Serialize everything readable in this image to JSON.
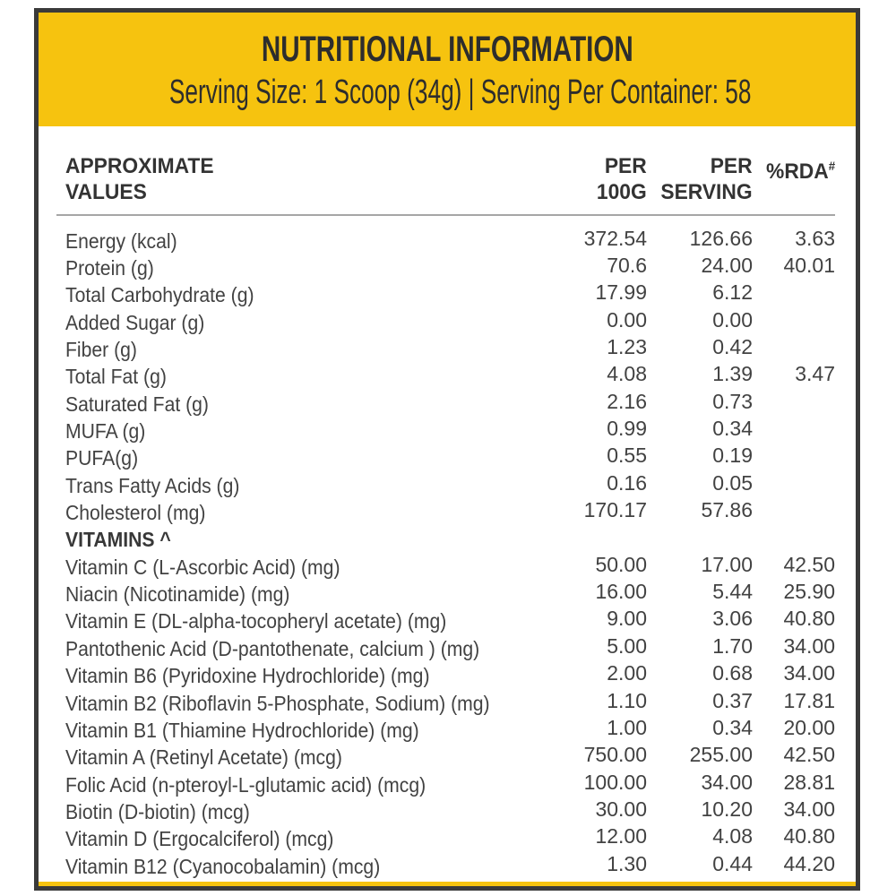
{
  "colors": {
    "accent_yellow": "#f6c30f",
    "border_dark": "#3a3a3a",
    "header_text": "#2d2d2d",
    "table_text": "#424242",
    "rule_gray": "#a6a6a6"
  },
  "header": {
    "title": "NUTRITIONAL INFORMATION",
    "subtitle": "Serving Size: 1 Scoop (34g) | Serving Per Container: 58"
  },
  "table": {
    "columns": {
      "c0_line1": "APPROXIMATE",
      "c0_line2": "VALUES",
      "c1_line1": "PER",
      "c1_line2": "100G",
      "c2_line1": "PER",
      "c2_line2": "SERVING",
      "c3_label": "%RDA",
      "c3_sup": "#"
    },
    "rows": [
      {
        "label": "Energy (kcal)",
        "per_100g": "372.54",
        "per_serving": "126.66",
        "rda": "3.63"
      },
      {
        "label": "Protein (g)",
        "per_100g": "70.6",
        "per_serving": "24.00",
        "rda": "40.01"
      },
      {
        "label": "Total Carbohydrate (g)",
        "per_100g": "17.99",
        "per_serving": "6.12",
        "rda": ""
      },
      {
        "label": "Added Sugar (g)",
        "per_100g": "0.00",
        "per_serving": "0.00",
        "rda": ""
      },
      {
        "label": "Fiber (g)",
        "per_100g": "1.23",
        "per_serving": "0.42",
        "rda": ""
      },
      {
        "label": "Total Fat (g)",
        "per_100g": "4.08",
        "per_serving": "1.39",
        "rda": "3.47"
      },
      {
        "label": "Saturated Fat (g)",
        "per_100g": "2.16",
        "per_serving": "0.73",
        "rda": ""
      },
      {
        "label": "MUFA (g)",
        "per_100g": "0.99",
        "per_serving": "0.34",
        "rda": ""
      },
      {
        "label": "PUFA(g)",
        "per_100g": "0.55",
        "per_serving": "0.19",
        "rda": ""
      },
      {
        "label": "Trans Fatty Acids (g)",
        "per_100g": "0.16",
        "per_serving": "0.05",
        "rda": ""
      },
      {
        "label": "Cholesterol (mg)",
        "per_100g": "170.17",
        "per_serving": "57.86",
        "rda": ""
      },
      {
        "label": "VITAMINS ^",
        "per_100g": "",
        "per_serving": "",
        "rda": "",
        "section": true
      },
      {
        "label": "Vitamin C (L-Ascorbic Acid) (mg)",
        "per_100g": "50.00",
        "per_serving": "17.00",
        "rda": "42.50"
      },
      {
        "label": "Niacin (Nicotinamide) (mg)",
        "per_100g": "16.00",
        "per_serving": "5.44",
        "rda": "25.90"
      },
      {
        "label": "Vitamin E (DL-alpha-tocopheryl acetate) (mg)",
        "per_100g": "9.00",
        "per_serving": "3.06",
        "rda": "40.80"
      },
      {
        "label": "Pantothenic Acid (D-pantothenate, calcium ) (mg)",
        "per_100g": "5.00",
        "per_serving": "1.70",
        "rda": "34.00"
      },
      {
        "label": "Vitamin B6 (Pyridoxine Hydrochloride) (mg)",
        "per_100g": "2.00",
        "per_serving": "0.68",
        "rda": "34.00"
      },
      {
        "label": "Vitamin B2 (Riboflavin 5-Phosphate, Sodium) (mg)",
        "per_100g": "1.10",
        "per_serving": "0.37",
        "rda": "17.81"
      },
      {
        "label": "Vitamin B1 (Thiamine Hydrochloride) (mg)",
        "per_100g": "1.00",
        "per_serving": "0.34",
        "rda": "20.00"
      },
      {
        "label": "Vitamin A (Retinyl Acetate) (mcg)",
        "per_100g": "750.00",
        "per_serving": "255.00",
        "rda": "42.50"
      },
      {
        "label": "Folic Acid (n-pteroyl-L-glutamic acid) (mcg)",
        "per_100g": "100.00",
        "per_serving": "34.00",
        "rda": "28.81"
      },
      {
        "label": "Biotin (D-biotin) (mcg)",
        "per_100g": "30.00",
        "per_serving": "10.20",
        "rda": "34.00"
      },
      {
        "label": "Vitamin D (Ergocalciferol) (mcg)",
        "per_100g": "12.00",
        "per_serving": "4.08",
        "rda": "40.80"
      },
      {
        "label": "Vitamin B12 (Cyanocobalamin) (mcg)",
        "per_100g": "1.30",
        "per_serving": "0.44",
        "rda": "44.20"
      }
    ]
  }
}
